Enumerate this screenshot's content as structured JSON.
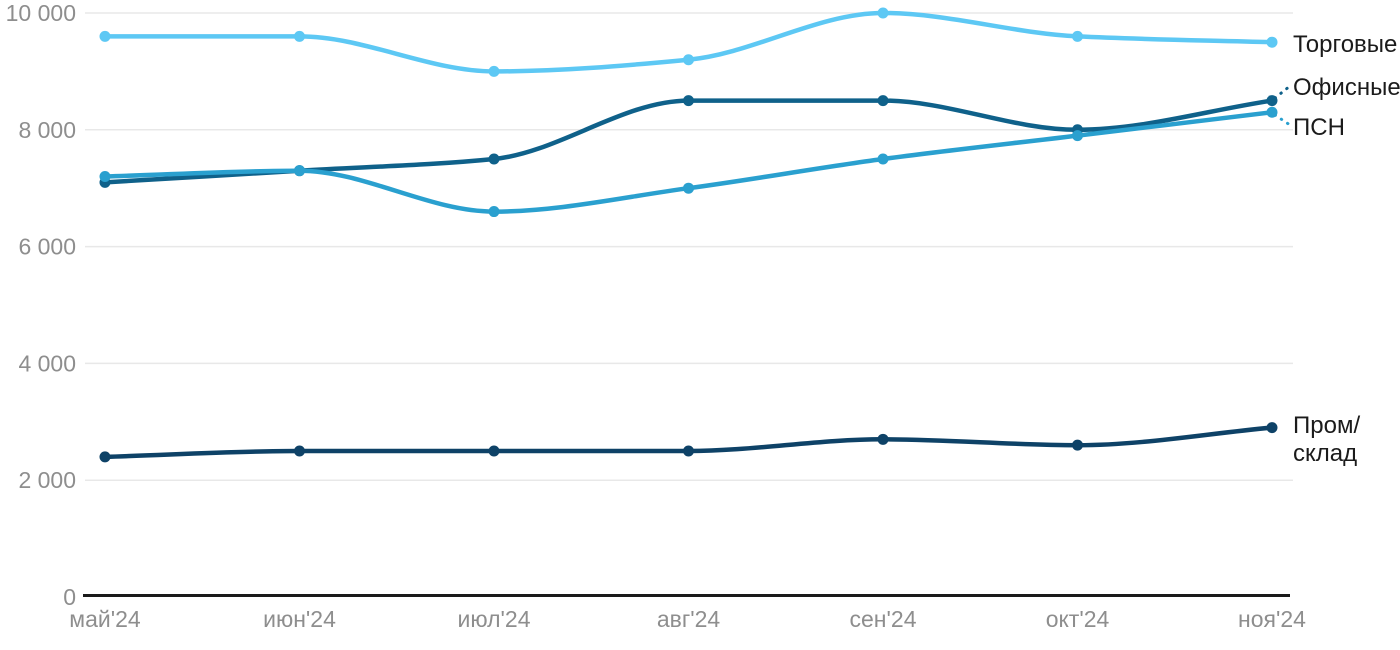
{
  "chart_data": {
    "type": "line",
    "title": "",
    "categories": [
      "май'24",
      "июн'24",
      "июл'24",
      "авг'24",
      "сен'24",
      "окт'24",
      "ноя'24"
    ],
    "series": [
      {
        "name": "Торговые",
        "color": "#5dc8f4",
        "values": [
          9600,
          9600,
          9000,
          9200,
          10000,
          9600,
          9500
        ],
        "label_lines": [
          "Торговые"
        ]
      },
      {
        "name": "Офисные",
        "color": "#0f618a",
        "values": [
          7100,
          7300,
          7500,
          8500,
          8500,
          8000,
          8500
        ],
        "label_lines": [
          "Офисные"
        ]
      },
      {
        "name": "ПСН",
        "color": "#2aa0cf",
        "values": [
          7200,
          7300,
          6600,
          7000,
          7500,
          7900,
          8300
        ],
        "label_lines": [
          "ПСН"
        ]
      },
      {
        "name": "Пром/склад",
        "color": "#0e4267",
        "values": [
          2400,
          2500,
          2500,
          2500,
          2700,
          2600,
          2900
        ],
        "label_lines": [
          "Пром/",
          "склад"
        ]
      }
    ],
    "xlabel": "",
    "ylabel": "",
    "ylim": [
      0,
      10000
    ],
    "yticks": [
      0,
      2000,
      4000,
      6000,
      8000,
      10000
    ],
    "ytick_labels": [
      "0",
      "2 000",
      "4 000",
      "6 000",
      "8 000",
      "10 000"
    ],
    "grid": true,
    "legend_position": "right",
    "colors": {
      "grid": "#e8e8e8",
      "axis": "#1a1a1a",
      "tick_text": "#8e8e8e",
      "legend_text": "#1b1b1b",
      "background": "#ffffff"
    }
  }
}
